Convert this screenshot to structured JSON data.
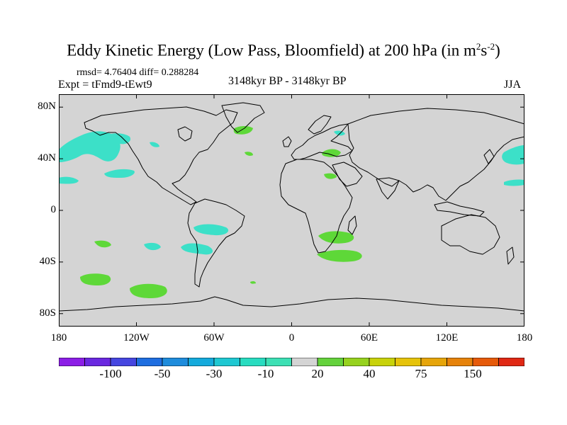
{
  "title": {
    "main": "Eddy Kinetic Energy (Low Pass, Bloomfield) at 200 hPa (in m",
    "sup1": "2",
    "mid": "s",
    "sup2": "-2",
    "end": ")"
  },
  "stats_line": "rmsd= 4.76404 diff= 0.288284",
  "experiment": "Expt = tFmd9-tEwt9",
  "period": "3148kyr BP - 3148kyr BP",
  "season": "JJA",
  "map": {
    "lon_range": [
      -180,
      180
    ],
    "lat_range": [
      -90,
      90
    ],
    "lon_ticks": [
      {
        "value": -180,
        "label": "180"
      },
      {
        "value": -120,
        "label": "120W"
      },
      {
        "value": -60,
        "label": "60W"
      },
      {
        "value": 0,
        "label": "0"
      },
      {
        "value": 60,
        "label": "60E"
      },
      {
        "value": 120,
        "label": "120E"
      },
      {
        "value": 180,
        "label": "180"
      }
    ],
    "lat_ticks": [
      {
        "value": 80,
        "label": "80N"
      },
      {
        "value": 40,
        "label": "40N"
      },
      {
        "value": 0,
        "label": "0"
      },
      {
        "value": -40,
        "label": "40S"
      },
      {
        "value": -80,
        "label": "80S"
      }
    ],
    "background_color": "#d4d4d4",
    "anomaly_patches": [
      {
        "name": "n-pacific-east",
        "sign": "negative",
        "color": "#3ce0c8"
      },
      {
        "name": "alaska-gulf",
        "sign": "negative",
        "color": "#3ce0c8"
      },
      {
        "name": "hawaii",
        "sign": "negative",
        "color": "#3ce0c8"
      },
      {
        "name": "ne-pacific-off-california",
        "sign": "negative",
        "color": "#3ce0c8"
      },
      {
        "name": "canada-west",
        "sign": "negative",
        "color": "#3ce0c8"
      },
      {
        "name": "nw-pacific-japan",
        "sign": "negative",
        "color": "#3ce0c8"
      },
      {
        "name": "w-pacific-subtropics",
        "sign": "negative",
        "color": "#3ce0c8"
      },
      {
        "name": "scandinavia-north",
        "sign": "negative",
        "color": "#3ce0c8"
      },
      {
        "name": "south-atlantic-east-of-argentina",
        "sign": "negative",
        "color": "#3ce0c8"
      },
      {
        "name": "south-pacific-west-of-chile",
        "sign": "negative",
        "color": "#3ce0c8"
      },
      {
        "name": "south-africa-north",
        "sign": "negative",
        "color": "#3ce0c8"
      },
      {
        "name": "greenland-east",
        "sign": "positive",
        "color": "#5ed838"
      },
      {
        "name": "mid-atlantic-north",
        "sign": "positive",
        "color": "#5ed838"
      },
      {
        "name": "black-sea",
        "sign": "positive",
        "color": "#5ed838"
      },
      {
        "name": "arabia",
        "sign": "positive",
        "color": "#5ed838"
      },
      {
        "name": "south-pacific-central",
        "sign": "positive",
        "color": "#5ed838"
      },
      {
        "name": "south-africa",
        "sign": "positive",
        "color": "#5ed838"
      },
      {
        "name": "indian-ocean-southwest",
        "sign": "positive",
        "color": "#5ed838"
      },
      {
        "name": "southern-ocean-pacific-1",
        "sign": "positive",
        "color": "#5ed838"
      },
      {
        "name": "southern-ocean-pacific-2",
        "sign": "positive",
        "color": "#5ed838"
      },
      {
        "name": "south-atlantic-small",
        "sign": "positive",
        "color": "#5ed838"
      }
    ]
  },
  "colorbar": {
    "colors": [
      "#8c1ee6",
      "#6a28e0",
      "#4646e0",
      "#1e6ee0",
      "#1e8cdc",
      "#14aadc",
      "#1ec8d2",
      "#28dcc0",
      "#3ce0b4",
      "#d4d4d4",
      "#64d23c",
      "#96d21e",
      "#c8d20a",
      "#e6c30a",
      "#e6a50a",
      "#e6820a",
      "#e65a0a",
      "#e02814"
    ],
    "labels": [
      {
        "boundary": 2,
        "text": "-100"
      },
      {
        "boundary": 4,
        "text": "-50"
      },
      {
        "boundary": 6,
        "text": "-30"
      },
      {
        "boundary": 8,
        "text": "-10"
      },
      {
        "boundary": 10,
        "text": "20"
      },
      {
        "boundary": 12,
        "text": "40"
      },
      {
        "boundary": 14,
        "text": "75"
      },
      {
        "boundary": 16,
        "text": "150"
      }
    ]
  }
}
